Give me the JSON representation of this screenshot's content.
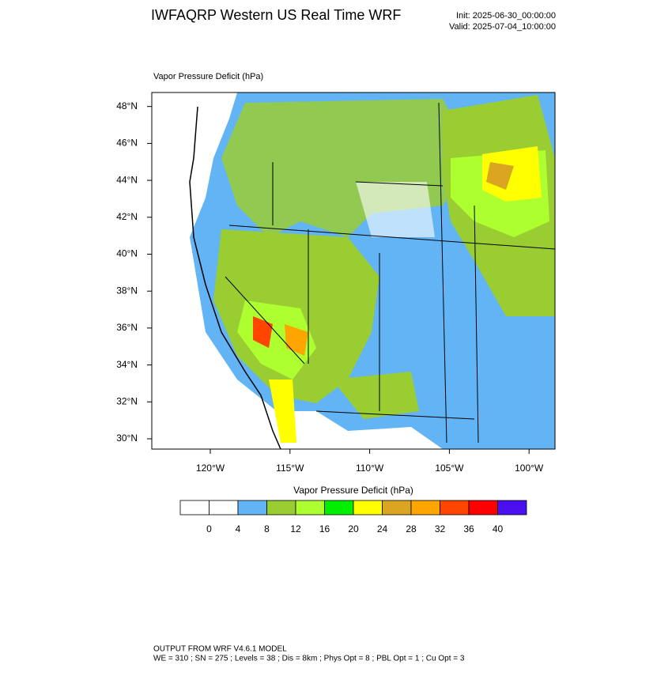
{
  "header": {
    "title": "IWFAQRP Western US Real Time WRF",
    "init": "Init: 2025-06-30_00:00:00",
    "valid": "Valid: 2025-07-04_10:00:00"
  },
  "map": {
    "label": "Vapor Pressure Deficit   (hPa)",
    "lat_labels": [
      "30°N",
      "32°N",
      "34°N",
      "36°N",
      "38°N",
      "40°N",
      "42°N",
      "44°N",
      "46°N",
      "48°N"
    ],
    "lon_labels": [
      "120°W",
      "115°W",
      "110°W",
      "105°W",
      "100°W"
    ]
  },
  "colorbar": {
    "title": "Vapor Pressure Deficit  (hPa)",
    "colors": [
      "#ffffff",
      "#ffffff",
      "#63b4f5",
      "#9acd32",
      "#adff2f",
      "#00ee00",
      "#ffff00",
      "#daa520",
      "#ffa500",
      "#ff4500",
      "#ff0000",
      "#4b10f0"
    ],
    "ticks": [
      "0",
      "4",
      "8",
      "12",
      "16",
      "20",
      "24",
      "28",
      "32",
      "36",
      "40"
    ]
  },
  "footer": {
    "line1": "OUTPUT FROM WRF V4.6.1 MODEL",
    "line2": "WE = 310 ; SN = 275 ; Levels = 38 ; Dis = 8km ; Phys Opt = 8 ; PBL Opt = 1 ; Cu Opt = 3"
  }
}
